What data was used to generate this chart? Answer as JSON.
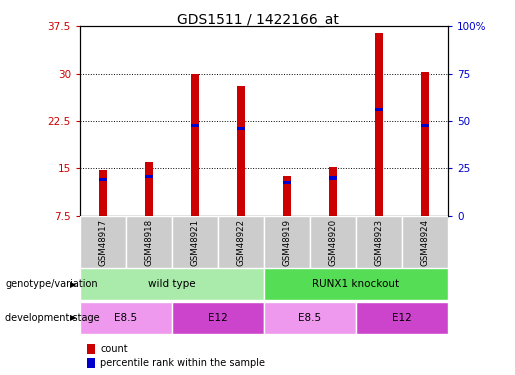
{
  "title": "GDS1511 / 1422166_at",
  "samples": [
    "GSM48917",
    "GSM48918",
    "GSM48921",
    "GSM48922",
    "GSM48919",
    "GSM48920",
    "GSM48923",
    "GSM48924"
  ],
  "count_values": [
    14.8,
    16.0,
    30.0,
    28.0,
    13.8,
    15.2,
    36.5,
    30.3
  ],
  "percentile_values": [
    13.0,
    13.5,
    21.5,
    21.0,
    12.5,
    13.2,
    24.0,
    21.5
  ],
  "percentile_heights": [
    0.5,
    0.5,
    0.5,
    0.5,
    0.5,
    0.5,
    0.5,
    0.5
  ],
  "y_min": 7.5,
  "y_max": 37.5,
  "y_ticks_left": [
    7.5,
    15.0,
    22.5,
    30.0,
    37.5
  ],
  "y_ticks_right": [
    0,
    25,
    50,
    75,
    100
  ],
  "bar_color": "#cc0000",
  "percentile_color": "#0000cc",
  "bar_width": 0.18,
  "genotype_groups": [
    {
      "label": "wild type",
      "start": 0,
      "end": 4,
      "color": "#aaeaaa"
    },
    {
      "label": "RUNX1 knockout",
      "start": 4,
      "end": 8,
      "color": "#55dd55"
    }
  ],
  "stage_groups": [
    {
      "label": "E8.5",
      "start": 0,
      "end": 2,
      "color": "#ee99ee"
    },
    {
      "label": "E12",
      "start": 2,
      "end": 4,
      "color": "#cc44cc"
    },
    {
      "label": "E8.5",
      "start": 4,
      "end": 6,
      "color": "#ee99ee"
    },
    {
      "label": "E12",
      "start": 6,
      "end": 8,
      "color": "#cc44cc"
    }
  ],
  "legend_items": [
    {
      "label": "count",
      "color": "#cc0000"
    },
    {
      "label": "percentile rank within the sample",
      "color": "#0000cc"
    }
  ],
  "grid_color": "#000000",
  "tick_fontsize": 7.5,
  "title_fontsize": 10,
  "background_color": "#ffffff",
  "genotype_label": "genotype/variation",
  "stage_label": "development stage"
}
